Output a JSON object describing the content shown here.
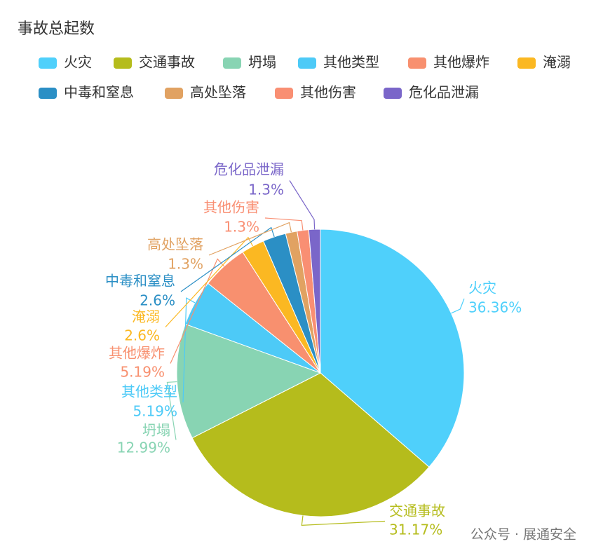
{
  "chart_data": {
    "type": "pie",
    "title": "事故总起数",
    "categories": [
      "火灾",
      "交通事故",
      "坍塌",
      "其他类型",
      "其他爆炸",
      "淹溺",
      "中毒和窒息",
      "高处坠落",
      "其他伤害",
      "危化品泄漏"
    ],
    "values": [
      36.36,
      31.17,
      12.99,
      5.19,
      5.19,
      2.6,
      2.6,
      1.3,
      1.3,
      1.3
    ],
    "value_labels": [
      "36.36%",
      "31.17%",
      "12.99%",
      "5.19%",
      "5.19%",
      "2.6%",
      "2.6%",
      "1.3%",
      "1.3%",
      "1.3%"
    ],
    "colors": [
      "#4fd0fb",
      "#b5bc1c",
      "#88d4b3",
      "#4dcaf7",
      "#f8906f",
      "#fbb822",
      "#2b8fc5",
      "#e1a262",
      "#f98f73",
      "#7a66c9"
    ],
    "watermark": "公众号 · 展通安全"
  }
}
